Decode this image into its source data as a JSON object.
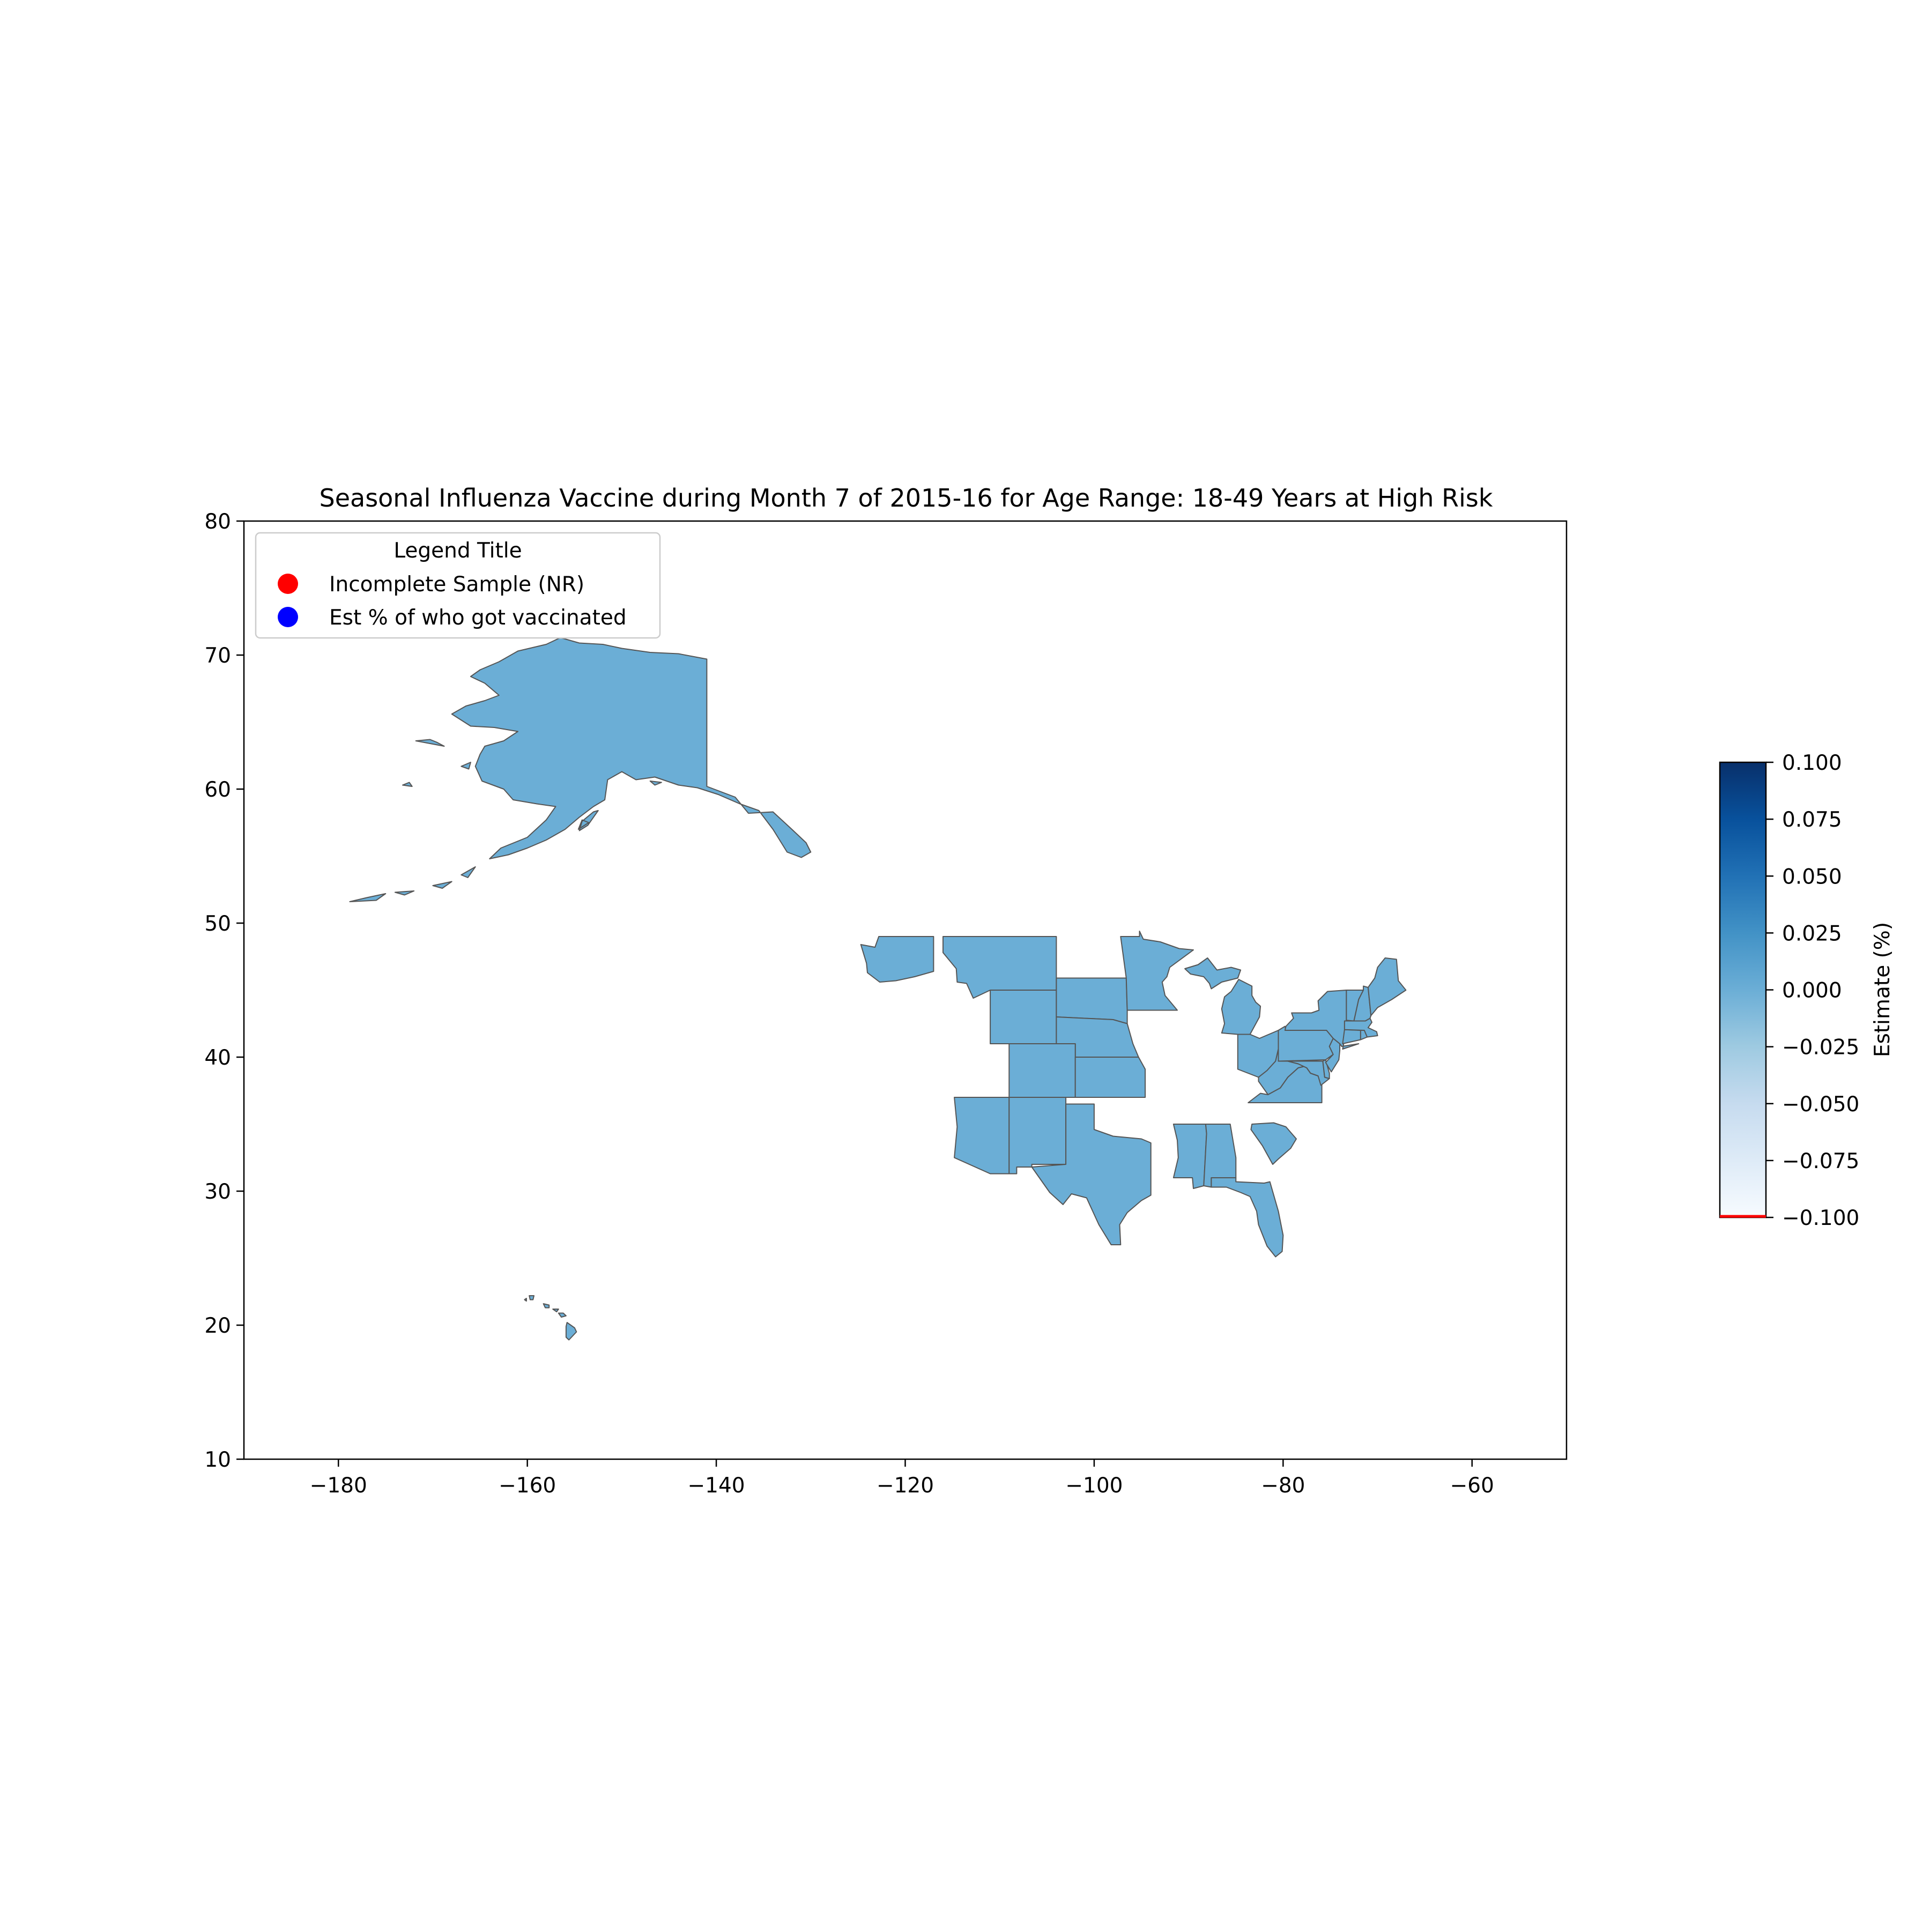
{
  "chart_data": {
    "type": "map",
    "title": "Seasonal Influenza Vaccine during Month 7 of 2015-16 for Age Range: 18-49 Years at High Risk",
    "xlim": [
      -190,
      -50
    ],
    "ylim": [
      10,
      80
    ],
    "x_ticks": [
      -180,
      -160,
      -140,
      -120,
      -100,
      -80,
      -60
    ],
    "y_ticks": [
      10,
      20,
      30,
      40,
      50,
      60,
      70,
      80
    ],
    "x_tick_labels": [
      "−180",
      "−160",
      "−140",
      "−120",
      "−100",
      "−80",
      "−60"
    ],
    "y_tick_labels": [
      "10",
      "20",
      "30",
      "40",
      "50",
      "60",
      "70",
      "80"
    ],
    "grid": false,
    "fill_color": "#6baed6",
    "edge_color": "#555555",
    "states": [
      {
        "name": "Alaska",
        "estimate": 0.0
      },
      {
        "name": "Hawaii",
        "estimate": 0.0
      },
      {
        "name": "Washington",
        "estimate": 0.0
      },
      {
        "name": "Montana",
        "estimate": 0.0
      },
      {
        "name": "Wyoming",
        "estimate": 0.0
      },
      {
        "name": "South Dakota",
        "estimate": 0.0
      },
      {
        "name": "Nebraska",
        "estimate": 0.0
      },
      {
        "name": "Colorado",
        "estimate": 0.0
      },
      {
        "name": "Kansas",
        "estimate": 0.0
      },
      {
        "name": "Arizona",
        "estimate": 0.0
      },
      {
        "name": "New Mexico",
        "estimate": 0.0
      },
      {
        "name": "Texas",
        "estimate": 0.0
      },
      {
        "name": "Minnesota",
        "estimate": 0.0
      },
      {
        "name": "Michigan",
        "estimate": 0.0
      },
      {
        "name": "Ohio",
        "estimate": 0.0
      },
      {
        "name": "West Virginia",
        "estimate": 0.0
      },
      {
        "name": "Virginia",
        "estimate": 0.0
      },
      {
        "name": "Pennsylvania",
        "estimate": 0.0
      },
      {
        "name": "Maryland",
        "estimate": 0.0
      },
      {
        "name": "Delaware",
        "estimate": 0.0
      },
      {
        "name": "New Jersey",
        "estimate": 0.0
      },
      {
        "name": "New York",
        "estimate": 0.0
      },
      {
        "name": "Connecticut",
        "estimate": 0.0
      },
      {
        "name": "Rhode Island",
        "estimate": 0.0
      },
      {
        "name": "Massachusetts",
        "estimate": 0.0
      },
      {
        "name": "Vermont",
        "estimate": 0.0
      },
      {
        "name": "New Hampshire",
        "estimate": 0.0
      },
      {
        "name": "Maine",
        "estimate": 0.0
      },
      {
        "name": "Mississippi",
        "estimate": 0.0
      },
      {
        "name": "Alabama",
        "estimate": 0.0
      },
      {
        "name": "Florida",
        "estimate": 0.0
      },
      {
        "name": "South Carolina",
        "estimate": 0.0
      }
    ],
    "legend": {
      "title": "Legend Title",
      "location": "upper-left",
      "entries": [
        {
          "label": "Incomplete Sample (NR)",
          "color": "#ff0000"
        },
        {
          "label": "Est % of who got vaccinated",
          "color": "#0000ff"
        }
      ]
    },
    "colorbar": {
      "label": "Estimate (%)",
      "range": [
        -0.1,
        0.1
      ],
      "ticks": [
        0.1,
        0.075,
        0.05,
        0.025,
        0.0,
        -0.025,
        -0.05,
        -0.075,
        -0.1
      ],
      "tick_labels": [
        "0.100",
        "0.075",
        "0.050",
        "0.025",
        "0.000",
        "−0.025",
        "−0.050",
        "−0.075",
        "−0.100"
      ],
      "colormap": "Blues",
      "low_color": "#f7fbff",
      "high_color": "#08306b",
      "nr_marker_color": "#ff0000"
    }
  }
}
